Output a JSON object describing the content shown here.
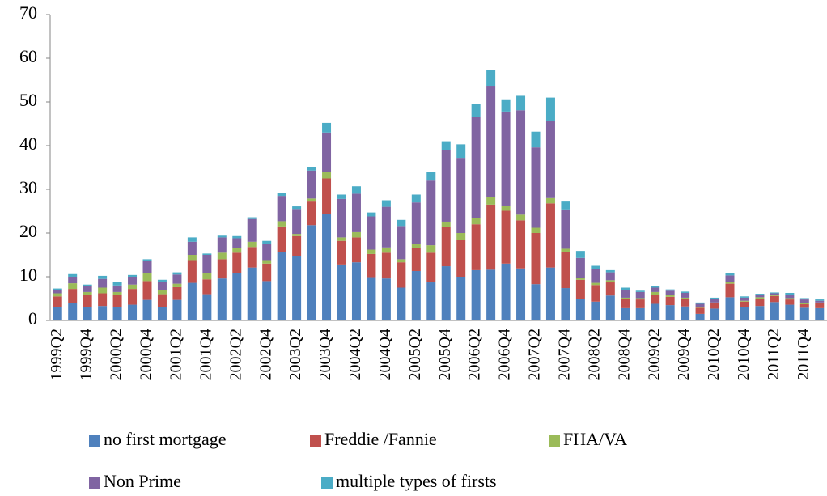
{
  "chart_data": {
    "type": "stacked-bar",
    "categories": [
      "1999Q2",
      null,
      "1999Q4",
      null,
      "2000Q2",
      null,
      "2000Q4",
      null,
      "2001Q2",
      null,
      "2001Q4",
      null,
      "2002Q2",
      null,
      "2002Q4",
      null,
      "2003Q2",
      null,
      "2003Q4",
      null,
      "2004Q2",
      null,
      "2004Q4",
      null,
      "2005Q2",
      null,
      "2005Q4",
      null,
      "2006Q2",
      null,
      "2006Q4",
      null,
      "2007Q2",
      null,
      "2007Q4",
      null,
      "2008Q2",
      null,
      "2008Q4",
      null,
      "2009Q2",
      null,
      "2009Q4",
      null,
      "2010Q2",
      null,
      "2010Q4",
      null,
      "2011Q2",
      null,
      "2011Q4",
      null
    ],
    "series": [
      {
        "name": "no first mortgage",
        "color": "#4f81bd",
        "values": [
          3,
          4,
          3,
          3.3,
          3,
          3.6,
          4.7,
          3.1,
          4.7,
          8.6,
          6,
          9.6,
          10.8,
          12.1,
          9,
          15.6,
          14.8,
          21.8,
          24.3,
          12.8,
          13.3,
          9.9,
          9.6,
          7.5,
          11.3,
          8.7,
          12.4,
          10,
          11.5,
          11.6,
          13,
          11.9,
          8.3,
          12.1,
          7.4,
          5,
          4.3,
          5.7,
          2.8,
          2.8,
          3.8,
          3.5,
          3.2,
          1.5,
          2.7,
          5.3,
          3,
          3.3,
          4.2,
          3.6,
          2.9,
          2.8
        ]
      },
      {
        "name": "Freddie /Fannie",
        "color": "#c0504d",
        "values": [
          2.5,
          3.2,
          2.8,
          2.9,
          2.8,
          3.6,
          4.3,
          2.9,
          2.9,
          5.2,
          3.4,
          4.4,
          4.7,
          4.7,
          4,
          5.9,
          4.5,
          5.4,
          8.2,
          5.4,
          5.7,
          5.3,
          5.9,
          5.8,
          5.3,
          6.8,
          9,
          8.5,
          10.5,
          14.9,
          12.1,
          11,
          11.7,
          14.7,
          8.3,
          4.3,
          3.8,
          3,
          2.1,
          2,
          2,
          1.9,
          1.7,
          1.4,
          1.2,
          3.1,
          1.3,
          1.7,
          1.4,
          1.2,
          0.8,
          1.1
        ]
      },
      {
        "name": "FHA/VA",
        "color": "#9bbb59",
        "values": [
          0.7,
          1.3,
          0.7,
          1.3,
          0.7,
          1,
          1.8,
          1,
          0.8,
          1.2,
          1.4,
          1.5,
          1,
          1.2,
          0.8,
          1.2,
          0.5,
          0.7,
          1.5,
          0.8,
          1.2,
          1,
          1.2,
          0.7,
          0.9,
          1.7,
          1.2,
          1.5,
          1.5,
          1.7,
          1.2,
          1.3,
          1.2,
          1.2,
          0.7,
          0.5,
          0.5,
          0.5,
          0.3,
          0.3,
          0.7,
          0.4,
          0.3,
          0.2,
          0.2,
          0.4,
          0.2,
          0.3,
          0.2,
          0.3,
          0.2,
          0.2
        ]
      },
      {
        "name": "Non Prime",
        "color": "#8064a2",
        "values": [
          0.8,
          1.5,
          1.3,
          2,
          1.5,
          1.8,
          2.8,
          1.8,
          2.1,
          3,
          4.2,
          3.5,
          2.3,
          5.2,
          3.7,
          5.8,
          5.7,
          6.4,
          9,
          8.8,
          8.8,
          7.6,
          9.3,
          7.6,
          9.5,
          14.8,
          16.4,
          17.2,
          23,
          25.5,
          21.5,
          23.9,
          18.4,
          17.7,
          9,
          4.5,
          3.1,
          1.8,
          1.8,
          1.4,
          1,
          1,
          1.1,
          0.7,
          0.8,
          1.5,
          0.7,
          0.6,
          0.4,
          0.8,
          0.9,
          0.4
        ]
      },
      {
        "name": "multiple types of firsts",
        "color": "#4bacc6",
        "values": [
          0.3,
          0.6,
          0.4,
          0.7,
          0.8,
          0.4,
          0.4,
          0.5,
          0.5,
          1,
          0.3,
          0.4,
          0.5,
          0.4,
          0.7,
          0.7,
          0.6,
          0.7,
          2.2,
          1,
          1.7,
          0.9,
          1.5,
          1.4,
          1.8,
          2,
          2,
          3.1,
          3.1,
          3.6,
          2.8,
          3.3,
          3.6,
          5.3,
          1.8,
          1.6,
          0.8,
          0.5,
          0.5,
          0.3,
          0.3,
          0.3,
          0.3,
          0.3,
          0.3,
          0.5,
          0.3,
          0.2,
          0.2,
          0.4,
          0.3,
          0.3
        ]
      }
    ],
    "ylim": [
      0,
      70
    ],
    "yticks": [
      0,
      10,
      20,
      30,
      40,
      50,
      60,
      70
    ],
    "grid": false
  }
}
